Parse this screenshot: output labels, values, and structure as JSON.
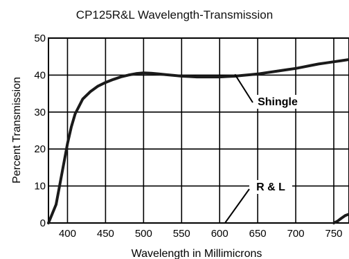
{
  "chart_data": {
    "type": "line",
    "title": "CP125R&L Wavelength-Transmission",
    "xlabel": "Wavelength in Millimicrons",
    "ylabel": "Percent Transmission",
    "x_ticks": [
      400,
      450,
      500,
      550,
      600,
      650,
      700,
      750
    ],
    "y_ticks": [
      0,
      10,
      20,
      30,
      40,
      50
    ],
    "xlim": [
      375,
      770
    ],
    "ylim": [
      0,
      50
    ],
    "grid": true,
    "series": [
      {
        "name": "Shingle",
        "x": [
          375,
          385,
          395,
          400,
          405,
          410,
          420,
          430,
          440,
          450,
          460,
          470,
          480,
          490,
          500,
          510,
          520,
          530,
          540,
          550,
          560,
          570,
          580,
          590,
          600,
          610,
          620,
          630,
          640,
          650,
          660,
          670,
          680,
          690,
          700,
          710,
          720,
          730,
          740,
          750,
          760,
          770
        ],
        "y": [
          0,
          5,
          16,
          21.5,
          26,
          29.5,
          33.5,
          35.5,
          37,
          38,
          38.8,
          39.5,
          40,
          40.4,
          40.6,
          40.5,
          40.3,
          40.1,
          39.9,
          39.7,
          39.6,
          39.5,
          39.5,
          39.5,
          39.5,
          39.6,
          39.7,
          39.9,
          40.1,
          40.3,
          40.6,
          40.9,
          41.2,
          41.5,
          41.8,
          42.2,
          42.6,
          43.0,
          43.3,
          43.6,
          43.9,
          44.2
        ]
      },
      {
        "name": "R & L",
        "x": [
          750,
          755,
          760,
          765,
          770
        ],
        "y": [
          0,
          0.5,
          1.3,
          2.0,
          2.4
        ]
      }
    ],
    "annotations": [
      {
        "text": "Shingle",
        "series": "Shingle"
      },
      {
        "text": "R & L",
        "series": "R & L"
      }
    ]
  }
}
